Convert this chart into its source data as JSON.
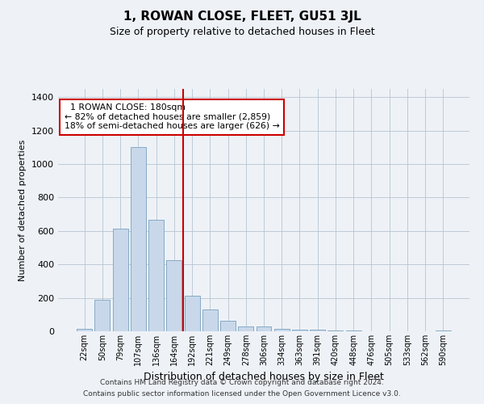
{
  "title": "1, ROWAN CLOSE, FLEET, GU51 3JL",
  "subtitle": "Size of property relative to detached houses in Fleet",
  "xlabel": "Distribution of detached houses by size in Fleet",
  "ylabel": "Number of detached properties",
  "footer_line1": "Contains HM Land Registry data © Crown copyright and database right 2024.",
  "footer_line2": "Contains public sector information licensed under the Open Government Licence v3.0.",
  "annotation_line1": "  1 ROWAN CLOSE: 180sqm  ",
  "annotation_line2": "← 82% of detached houses are smaller (2,859)",
  "annotation_line3": "18% of semi-detached houses are larger (626) →",
  "bar_color": "#c8d8ea",
  "bar_edge_color": "#7aa0bf",
  "vline_color": "#cc0000",
  "background_color": "#eef2f7",
  "plot_bg_color": "#eef2f7",
  "categories": [
    "22sqm",
    "50sqm",
    "79sqm",
    "107sqm",
    "136sqm",
    "164sqm",
    "192sqm",
    "221sqm",
    "249sqm",
    "278sqm",
    "306sqm",
    "334sqm",
    "363sqm",
    "391sqm",
    "420sqm",
    "448sqm",
    "476sqm",
    "505sqm",
    "533sqm",
    "562sqm",
    "590sqm"
  ],
  "values": [
    15,
    190,
    615,
    1100,
    665,
    425,
    215,
    130,
    65,
    28,
    28,
    15,
    10,
    8,
    5,
    5,
    0,
    0,
    0,
    0,
    5
  ],
  "vline_x": 5.5,
  "ylim": [
    0,
    1450
  ],
  "yticks": [
    0,
    200,
    400,
    600,
    800,
    1000,
    1200,
    1400
  ],
  "figsize": [
    6.0,
    5.0
  ],
  "dpi": 100
}
